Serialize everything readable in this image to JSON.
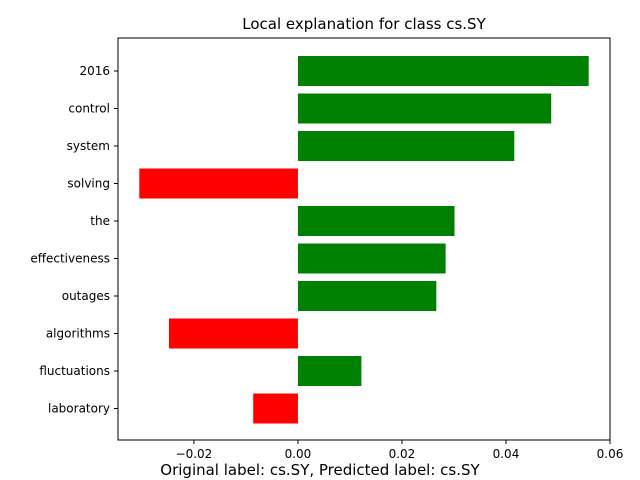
{
  "chart_data": {
    "type": "bar",
    "orientation": "horizontal",
    "title": "Local explanation for class cs.SY",
    "caption": "Original label: cs.SY, Predicted label: cs.SY",
    "xlabel": "",
    "ylabel": "",
    "categories": [
      "2016",
      "control",
      "system",
      "solving",
      "the",
      "effectiveness",
      "outages",
      "algorithms",
      "fluctuations",
      "laboratory"
    ],
    "values": [
      0.0559,
      0.0487,
      0.0416,
      -0.0305,
      0.0301,
      0.0284,
      0.0266,
      -0.0248,
      0.0122,
      -0.0086
    ],
    "xlim": [
      -0.0346,
      0.06
    ],
    "xticks": [
      -0.02,
      0.0,
      0.02,
      0.04,
      0.06
    ],
    "xtick_labels": [
      "−0.02",
      "0.00",
      "0.02",
      "0.04",
      "0.06"
    ],
    "colors": {
      "positive": "#008000",
      "negative": "#ff0000",
      "axis": "#000000"
    },
    "grid": false
  }
}
